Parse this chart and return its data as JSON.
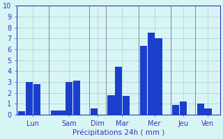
{
  "days": [
    "Lun",
    "Sam",
    "Dim",
    "Mar",
    "Mer",
    "Jeu",
    "Ven"
  ],
  "bars_per_day": [
    [
      0.3,
      3.0,
      2.8
    ],
    [
      0.4,
      0.4,
      3.0,
      3.1
    ],
    [
      0.6
    ],
    [
      1.8,
      4.4,
      1.7
    ],
    [
      6.3,
      7.5,
      7.0
    ],
    [
      0.9,
      1.2
    ],
    [
      1.0,
      0.6
    ]
  ],
  "bar_color": "#1a3fcc",
  "divider_color": "#555577",
  "bg_color": "#d8f5f5",
  "grid_color": "#aacccc",
  "axis_color": "#3333bb",
  "xlabel": "Précipitations 24h ( mm )",
  "ylim": [
    0,
    10
  ],
  "yticks": [
    0,
    1,
    2,
    3,
    4,
    5,
    6,
    7,
    8,
    9,
    10
  ]
}
